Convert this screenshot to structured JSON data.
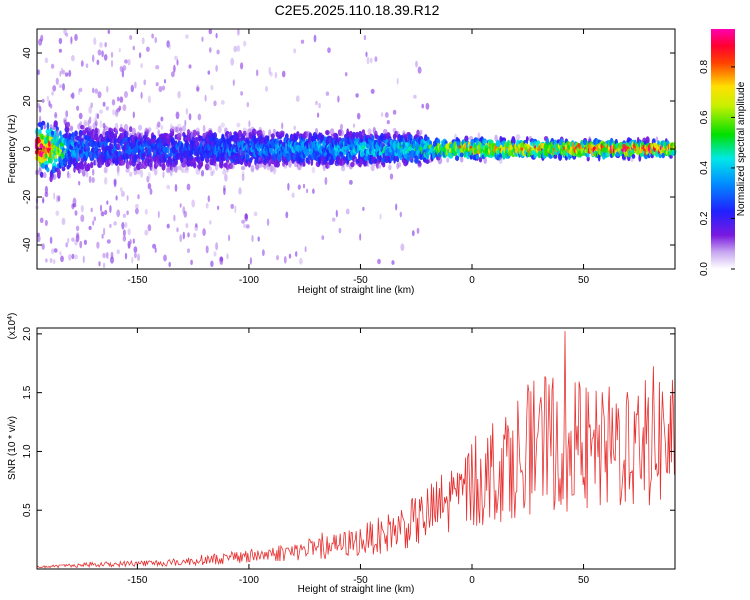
{
  "title": "C2E5.2025.110.18.39.R12",
  "chart_data": [
    {
      "type": "heatmap",
      "xlabel": "Height of straight line (km)",
      "ylabel": "Frequency (Hz)",
      "xlim": [
        -195,
        91
      ],
      "ylim": [
        -50,
        50
      ],
      "x_ticks": [
        -150,
        -100,
        -50,
        0,
        50
      ],
      "y_ticks": [
        -40,
        -20,
        0,
        20,
        40
      ],
      "colorbar": {
        "label": "Normalized spectral amplitude",
        "range": [
          0,
          0.95
        ],
        "ticks": [
          "0.0",
          "0.2",
          "0.4",
          "0.6",
          "0.8"
        ],
        "colormap": "rainbow (white to purple to blue to cyan to green to yellow to red to magenta)"
      },
      "series": [
        {
          "values": [
            [
              -190,
              0.9
            ],
            [
              -180,
              0.4
            ],
            [
              -170,
              0.3
            ],
            [
              -160,
              0.3
            ],
            [
              -150,
              0.3
            ],
            [
              -140,
              0.3
            ],
            [
              -130,
              0.3
            ],
            [
              -120,
              0.3
            ],
            [
              -110,
              0.35
            ],
            [
              -100,
              0.35
            ],
            [
              -90,
              0.35
            ],
            [
              -80,
              0.4
            ],
            [
              -70,
              0.4
            ],
            [
              -60,
              0.4
            ],
            [
              -50,
              0.45
            ],
            [
              -40,
              0.45
            ],
            [
              -30,
              0.5
            ],
            [
              -20,
              0.55
            ],
            [
              -10,
              0.75
            ],
            [
              0,
              0.8
            ],
            [
              10,
              0.8
            ],
            [
              20,
              0.8
            ],
            [
              30,
              0.85
            ],
            [
              40,
              0.85
            ],
            [
              50,
              0.9
            ],
            [
              60,
              0.9
            ],
            [
              70,
              0.95
            ],
            [
              80,
              0.95
            ],
            [
              90,
              0.95
            ]
          ]
        }
      ]
    },
    {
      "type": "line",
      "xlabel": "Height of straight line (km)",
      "ylabel": "SNR (10 * v/v)",
      "y_multiplier": "(x10^4)",
      "xlim": [
        -195,
        91
      ],
      "ylim": [
        0,
        2.05
      ],
      "x_ticks": [
        -150,
        -100,
        -50,
        0,
        50
      ],
      "y_ticks": [
        "0.5",
        "1.0",
        "1.5",
        "2.0"
      ],
      "color": "#e83030",
      "series": [
        {
          "x": [
            -190,
            -180,
            -170,
            -160,
            -150,
            -140,
            -130,
            -120,
            -110,
            -100,
            -90,
            -80,
            -70,
            -60,
            -50,
            -45,
            -40,
            -35,
            -30,
            -25,
            -20,
            -15,
            -10,
            -5,
            0,
            5,
            10,
            15,
            20,
            25,
            30,
            35,
            40,
            45,
            50,
            55,
            60,
            65,
            70,
            75,
            80,
            85,
            90
          ],
          "values": [
            0.02,
            0.03,
            0.04,
            0.04,
            0.05,
            0.05,
            0.06,
            0.08,
            0.09,
            0.11,
            0.13,
            0.15,
            0.17,
            0.2,
            0.24,
            0.27,
            0.29,
            0.33,
            0.37,
            0.4,
            0.46,
            0.52,
            0.58,
            0.64,
            0.72,
            0.78,
            0.85,
            0.9,
            0.97,
            1.02,
            1.05,
            1.08,
            1.08,
            1.05,
            1.02,
            0.98,
            1.0,
            1.05,
            1.08,
            1.1,
            1.12,
            1.12,
            1.1
          ]
        }
      ]
    }
  ]
}
